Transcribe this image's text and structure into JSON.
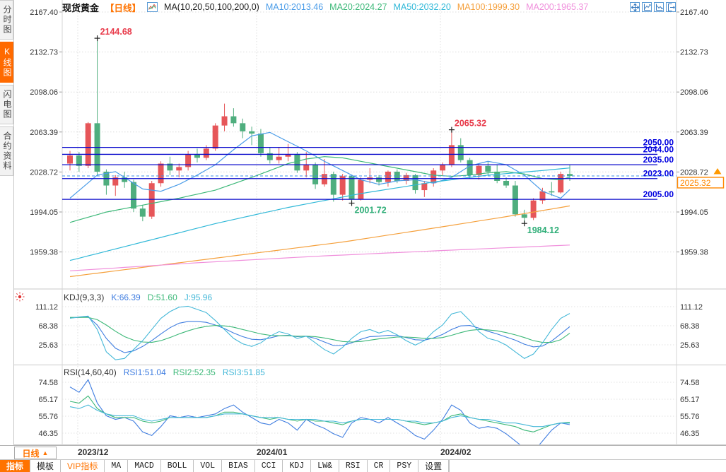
{
  "header": {
    "symbol": "现货黄金",
    "period_tag": "【日线】",
    "ma_title": "MA(10,20,50,100,200,0)",
    "ma_values": [
      {
        "label": "MA10:2013.46",
        "color": "#4a9ce8"
      },
      {
        "label": "MA20:2024.27",
        "color": "#3cb878"
      },
      {
        "label": "MA50:2032.20",
        "color": "#30b8d8"
      },
      {
        "label": "MA100:1999.30",
        "color": "#f5a03c"
      },
      {
        "label": "MA200:1965.37",
        "color": "#f090dc"
      }
    ],
    "icons": [
      "move-chart-icon",
      "compress-chart-icon",
      "expand-chart-icon",
      "exit-chart-icon"
    ]
  },
  "sidebar": {
    "tabs": [
      {
        "label": "分时图",
        "selected": false
      },
      {
        "label": "K线图",
        "selected": true
      },
      {
        "label": "闪电图",
        "selected": false
      },
      {
        "label": "合约资料",
        "selected": false
      }
    ]
  },
  "axis_row": {
    "period_label": "日线",
    "period_arrow": "▲",
    "months": [
      {
        "label": "2023/12",
        "x": 110
      },
      {
        "label": "2024/01",
        "x": 363
      },
      {
        "label": "2024/02",
        "x": 623
      }
    ]
  },
  "toolbar": {
    "items": [
      {
        "label": "指标"
      },
      {
        "label": "模板"
      },
      {
        "label": "VIP指标"
      },
      {
        "label": "MA"
      },
      {
        "label": "MACD"
      },
      {
        "label": "BOLL"
      },
      {
        "label": "VOL"
      },
      {
        "label": "BIAS"
      },
      {
        "label": "CCI"
      },
      {
        "label": "KDJ"
      },
      {
        "label": "LW&"
      },
      {
        "label": "RSI"
      },
      {
        "label": "CR"
      },
      {
        "label": "PSY"
      },
      {
        "label": "设置"
      }
    ]
  },
  "chart_data": {
    "type": "candlestick+indicators",
    "title": "现货黄金 日线",
    "colors": {
      "up": "#e65659",
      "down": "#4fae7e",
      "level_line": "#0a0acc",
      "level_label": "#0000e0",
      "grid": "#dcdcdc",
      "axis_text": "#333333",
      "current_line": "#3e8fe8",
      "current_box": "#ff8800",
      "anno_high": "#e83a4a",
      "anno_low": "#2fae78",
      "ma10": "#4a9ce8",
      "ma20": "#3cb878",
      "ma50": "#30b8d8",
      "ma100": "#f5a03c",
      "ma200": "#f090dc",
      "k_line": "#3f7de0",
      "d_line": "#3cb878",
      "j_line": "#45b8d8"
    },
    "price_axis": {
      "tick_labels": [
        "2167.40",
        "2132.73",
        "2098.06",
        "2063.39",
        "2028.72",
        "1994.05",
        "1959.38"
      ]
    },
    "months": [
      {
        "label": "2023/12",
        "x": 110
      },
      {
        "label": "2024/01",
        "x": 363
      },
      {
        "label": "2024/02",
        "x": 623
      }
    ],
    "candles": [
      [
        2036,
        2047,
        2030,
        2043
      ],
      [
        2043,
        2046,
        2029,
        2034
      ],
      [
        2034,
        2072,
        2032,
        2071
      ],
      [
        2071,
        2144.68,
        2026,
        2029
      ],
      [
        2029,
        2031,
        2009,
        2017
      ],
      [
        2017,
        2026,
        2008,
        2024
      ],
      [
        2024,
        2029,
        2015,
        2020
      ],
      [
        2020,
        2022,
        1994,
        1997
      ],
      [
        1997,
        2000,
        1986,
        1990
      ],
      [
        1990,
        2021,
        1988,
        2019
      ],
      [
        2019,
        2038,
        2016,
        2036
      ],
      [
        2036,
        2042,
        2026,
        2030
      ],
      [
        2030,
        2036,
        2024,
        2033
      ],
      [
        2033,
        2047,
        2030,
        2044
      ],
      [
        2044,
        2049,
        2037,
        2041
      ],
      [
        2041,
        2052,
        2039,
        2049
      ],
      [
        2049,
        2071,
        2047,
        2069
      ],
      [
        2069,
        2088,
        2064,
        2077
      ],
      [
        2077,
        2084,
        2068,
        2071
      ],
      [
        2071,
        2075,
        2058,
        2064
      ],
      [
        2064,
        2068,
        2052,
        2062
      ],
      [
        2062,
        2066,
        2042,
        2045
      ],
      [
        2045,
        2050,
        2036,
        2039
      ],
      [
        2039,
        2050,
        2036,
        2042
      ],
      [
        2042,
        2053,
        2038,
        2044
      ],
      [
        2044,
        2046,
        2028,
        2030
      ],
      [
        2030,
        2046,
        2024,
        2035
      ],
      [
        2035,
        2037,
        2014,
        2018
      ],
      [
        2018,
        2040,
        2016,
        2027
      ],
      [
        2027,
        2029,
        2003,
        2009
      ],
      [
        2009,
        2027,
        2004,
        2025
      ],
      [
        2025,
        2026,
        2001.72,
        2005
      ],
      [
        2005,
        2024,
        2004,
        2022
      ],
      [
        2022,
        2032,
        2019,
        2024
      ],
      [
        2024,
        2026,
        2017,
        2020
      ],
      [
        2020,
        2030,
        2016,
        2029
      ],
      [
        2029,
        2031,
        2019,
        2021
      ],
      [
        2021,
        2028,
        2018,
        2026
      ],
      [
        2026,
        2027,
        2010,
        2013
      ],
      [
        2013,
        2021,
        2007,
        2019
      ],
      [
        2019,
        2032,
        2016,
        2030
      ],
      [
        2030,
        2037,
        2026,
        2035
      ],
      [
        2035,
        2065.32,
        2033,
        2052
      ],
      [
        2052,
        2058,
        2037,
        2039
      ],
      [
        2039,
        2041,
        2023,
        2026
      ],
      [
        2026,
        2036,
        2022,
        2034
      ],
      [
        2034,
        2038,
        2026,
        2029
      ],
      [
        2029,
        2035,
        2019,
        2021
      ],
      [
        2021,
        2024,
        2015,
        2017
      ],
      [
        2017,
        2021,
        1990,
        1992
      ],
      [
        1992,
        1996,
        1984.12,
        1989
      ],
      [
        1989,
        2006,
        1987,
        2004
      ],
      [
        2004,
        2015,
        2001,
        2012
      ],
      [
        2012,
        2020,
        2008,
        2011
      ],
      [
        2011,
        2029,
        2010,
        2027
      ],
      [
        2027,
        2035,
        2021,
        2025.32
      ]
    ],
    "ma_overlays": [
      {
        "name": "MA10",
        "color": "#4a9ce8",
        "anchors": [
          [
            0,
            2006
          ],
          [
            3,
            2026
          ],
          [
            5,
            2029
          ],
          [
            8,
            2014
          ],
          [
            10,
            2012
          ],
          [
            12,
            2018
          ],
          [
            14,
            2026
          ],
          [
            16,
            2035
          ],
          [
            18,
            2048
          ],
          [
            20,
            2060
          ],
          [
            22,
            2063
          ],
          [
            24,
            2055
          ],
          [
            26,
            2047
          ],
          [
            28,
            2038
          ],
          [
            30,
            2030
          ],
          [
            32,
            2022
          ],
          [
            34,
            2018
          ],
          [
            36,
            2021
          ],
          [
            38,
            2022
          ],
          [
            40,
            2019
          ],
          [
            42,
            2024
          ],
          [
            44,
            2034
          ],
          [
            46,
            2038
          ],
          [
            48,
            2035
          ],
          [
            50,
            2026
          ],
          [
            52,
            2012
          ],
          [
            54,
            2006
          ],
          [
            55,
            2013.46
          ]
        ]
      },
      {
        "name": "MA20",
        "color": "#3cb878",
        "anchors": [
          [
            0,
            1985
          ],
          [
            4,
            1994
          ],
          [
            8,
            2000
          ],
          [
            12,
            2006
          ],
          [
            16,
            2013
          ],
          [
            20,
            2024
          ],
          [
            24,
            2036
          ],
          [
            26,
            2040
          ],
          [
            28,
            2042
          ],
          [
            30,
            2041
          ],
          [
            32,
            2038
          ],
          [
            34,
            2035
          ],
          [
            36,
            2032
          ],
          [
            38,
            2029
          ],
          [
            40,
            2026
          ],
          [
            42,
            2025
          ],
          [
            44,
            2026
          ],
          [
            46,
            2028
          ],
          [
            48,
            2029
          ],
          [
            50,
            2027
          ],
          [
            52,
            2023
          ],
          [
            54,
            2022
          ],
          [
            55,
            2024.27
          ]
        ]
      },
      {
        "name": "MA50",
        "color": "#30b8d8",
        "anchors": [
          [
            0,
            1952
          ],
          [
            8,
            1968
          ],
          [
            16,
            1984
          ],
          [
            24,
            1998
          ],
          [
            32,
            2010
          ],
          [
            40,
            2020
          ],
          [
            46,
            2026
          ],
          [
            52,
            2030
          ],
          [
            55,
            2032.2
          ]
        ]
      },
      {
        "name": "MA100",
        "color": "#f5a03c",
        "anchors": [
          [
            0,
            1938
          ],
          [
            10,
            1948
          ],
          [
            20,
            1958
          ],
          [
            30,
            1968
          ],
          [
            40,
            1980
          ],
          [
            48,
            1990
          ],
          [
            55,
            1999.3
          ]
        ]
      },
      {
        "name": "MA200",
        "color": "#f090dc",
        "anchors": [
          [
            0,
            1943
          ],
          [
            14,
            1950
          ],
          [
            28,
            1956
          ],
          [
            42,
            1961
          ],
          [
            55,
            1965.37
          ]
        ]
      }
    ],
    "levels": [
      {
        "value": 2050,
        "label": "2050.00"
      },
      {
        "value": 2044,
        "label": "2044.00"
      },
      {
        "value": 2035,
        "label": "2035.00"
      },
      {
        "value": 2023,
        "label": "2023.00"
      },
      {
        "value": 2005,
        "label": "2005.00"
      }
    ],
    "current_price": {
      "value": 2025.32,
      "label": "2025.32"
    },
    "annotations": [
      {
        "text": "2144.68",
        "index": 3,
        "at": "high",
        "color": "#e83a4a"
      },
      {
        "text": "2065.32",
        "index": 42,
        "at": "high",
        "color": "#e83a4a"
      },
      {
        "text": "2001.72",
        "index": 31,
        "at": "low",
        "color": "#2fae78"
      },
      {
        "text": "1984.12",
        "index": 50,
        "at": "low",
        "color": "#2fae78"
      }
    ],
    "panes": {
      "kdj": {
        "title": "KDJ(9,3,3)",
        "tick_labels": [
          "111.12",
          "68.38",
          "25.63"
        ],
        "series": [
          {
            "label": "K:66.39",
            "color": "#3f7de0",
            "values": [
              86,
              87,
              88,
              70,
              40,
              18,
              8,
              12,
              22,
              35,
              50,
              64,
              74,
              78,
              78,
              76,
              70,
              62,
              52,
              44,
              38,
              37,
              41,
              46,
              47,
              44,
              45,
              40,
              32,
              24,
              24,
              30,
              38,
              44,
              45,
              47,
              46,
              42,
              37,
              36,
              41,
              49,
              60,
              68,
              69,
              63,
              56,
              50,
              43,
              36,
              27,
              21,
              23,
              34,
              50,
              66.39
            ]
          },
          {
            "label": "D:51.60",
            "color": "#3cb878",
            "values": [
              87,
              87,
              87,
              82,
              70,
              56,
              44,
              36,
              32,
              31,
              35,
              42,
              50,
              57,
              63,
              67,
              69,
              68,
              65,
              60,
              55,
              50,
              47,
              46,
              46,
              45,
              45,
              44,
              41,
              37,
              33,
              32,
              33,
              36,
              39,
              41,
              43,
              43,
              42,
              40,
              40,
              42,
              47,
              53,
              58,
              60,
              59,
              57,
              53,
              48,
              42,
              35,
              31,
              31,
              37,
              51.6
            ]
          },
          {
            "label": "J:95.96",
            "color": "#45b8d8",
            "values": [
              85,
              88,
              90,
              60,
              10,
              -8,
              -5,
              15,
              35,
              60,
              85,
              100,
              110,
              112,
              105,
              98,
              80,
              60,
              40,
              28,
              22,
              30,
              45,
              55,
              50,
              40,
              45,
              30,
              15,
              5,
              20,
              40,
              55,
              60,
              52,
              58,
              48,
              35,
              25,
              35,
              55,
              70,
              95,
              100,
              80,
              55,
              40,
              35,
              25,
              10,
              -5,
              5,
              30,
              60,
              85,
              95.96
            ]
          }
        ]
      },
      "rsi": {
        "title": "RSI(14,60,40)",
        "tick_labels": [
          "74.58",
          "65.17",
          "55.76",
          "46.35"
        ],
        "series": [
          {
            "label": "RSI1:51.04",
            "color": "#3f7de0",
            "values": [
              72,
              69,
              76,
              63,
              56,
              54,
              55,
              53,
              47,
              45,
              50,
              56,
              55,
              56,
              55,
              56,
              57,
              60,
              62,
              58,
              55,
              52,
              51,
              54,
              52,
              48,
              54,
              51,
              49,
              46,
              44,
              52,
              55,
              54,
              52,
              55,
              52,
              49,
              45,
              43,
              48,
              54,
              62,
              59,
              52,
              49,
              50,
              49,
              46,
              42,
              38,
              36,
              42,
              48,
              52,
              51.04
            ]
          },
          {
            "label": "RSI2:52.35",
            "color": "#3cb878",
            "values": [
              64,
              63,
              67,
              60,
              57,
              55,
              55,
              55,
              53,
              52,
              53,
              55,
              55,
              55,
              55,
              55,
              56,
              58,
              58,
              57,
              56,
              55,
              54,
              55,
              54,
              53,
              54,
              53,
              53,
              52,
              51,
              53,
              54,
              54,
              54,
              54,
              54,
              53,
              52,
              51,
              52,
              53,
              56,
              57,
              55,
              54,
              53,
              52,
              51,
              50,
              48,
              47,
              49,
              51,
              52,
              52.35
            ]
          },
          {
            "label": "RSI3:51.85",
            "color": "#45b8d8",
            "values": [
              61,
              60,
              62,
              59,
              57,
              56,
              56,
              56,
              54,
              53,
              54,
              55,
              55,
              55,
              55,
              55,
              56,
              57,
              57,
              57,
              56,
              55,
              55,
              55,
              54,
              54,
              54,
              54,
              53,
              53,
              52,
              53,
              54,
              54,
              54,
              54,
              54,
              53,
              53,
              52,
              52,
              53,
              55,
              56,
              55,
              54,
              54,
              53,
              52,
              52,
              51,
              50,
              50,
              51,
              52,
              51.85
            ]
          }
        ]
      }
    }
  }
}
